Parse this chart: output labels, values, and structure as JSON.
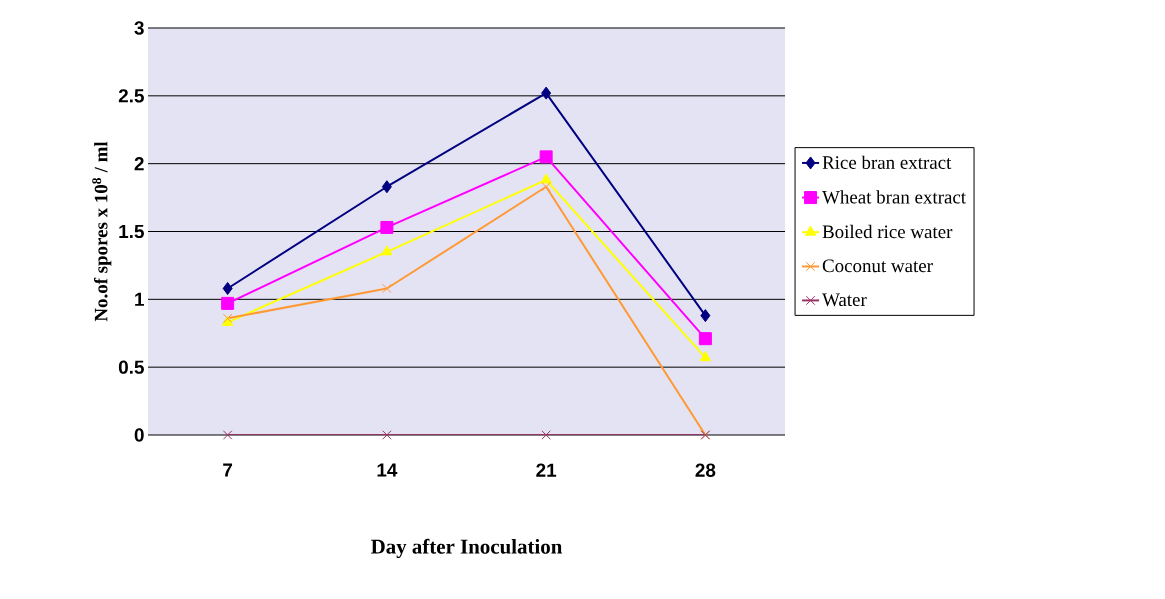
{
  "chart_data": {
    "type": "line",
    "xlabel": "Day after Inoculation",
    "ylabel": "No.of spores x 10$^{8}$ / ml",
    "categories": [
      "7",
      "14",
      "21",
      "28"
    ],
    "series": [
      {
        "name": "Rice bran extract",
        "color": "#000080",
        "marker": "diamond",
        "values": [
          1.08,
          1.83,
          2.52,
          0.88
        ]
      },
      {
        "name": "Wheat bran extract",
        "color": "#ff00ff",
        "marker": "square",
        "values": [
          0.97,
          1.53,
          2.05,
          0.71
        ]
      },
      {
        "name": "Boiled rice water",
        "color": "#ffff00",
        "marker": "triangle",
        "values": [
          0.83,
          1.35,
          1.88,
          0.57
        ]
      },
      {
        "name": "Coconut water",
        "color": "#ff9933",
        "marker": "cross",
        "values": [
          0.86,
          1.08,
          1.83,
          0
        ]
      },
      {
        "name": "Water",
        "color": "#993366",
        "marker": "cross",
        "values": [
          0,
          0,
          0,
          0
        ]
      }
    ],
    "ylim": [
      0,
      3
    ],
    "yticks": [
      0,
      0.5,
      1,
      1.5,
      2,
      2.5,
      3
    ],
    "grid": "y",
    "legend": "right",
    "line_style": "solid"
  }
}
